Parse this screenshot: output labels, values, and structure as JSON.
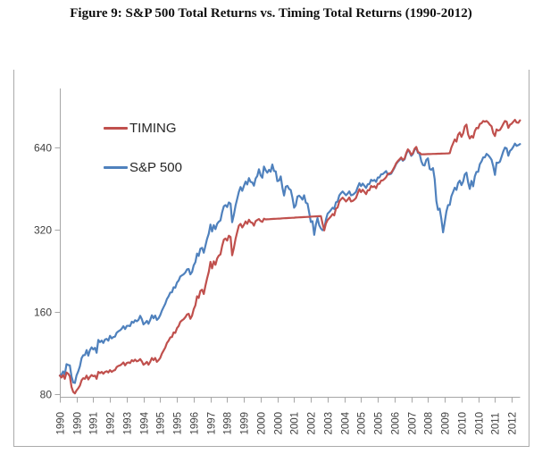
{
  "title": "Figure 9: S&P 500 Total Returns vs. Timing Total Returns (1990-2012)",
  "colors": {
    "timing_red": "#C0504D",
    "sp500_blue": "#4F81BD",
    "axis_gray": "#A6A6A6",
    "tick_label_gray": "#404040",
    "title_black": "#111111"
  },
  "chart_data": {
    "type": "line",
    "title": "Figure 9: S&P 500 Total Returns vs. Timing Total Returns (1990-2012)",
    "y_scale": "log2",
    "y_ticks": [
      80,
      160,
      320,
      640
    ],
    "ylim": [
      80,
      900
    ],
    "x_start": "1990-01",
    "x_step": "1 month",
    "x_points": 276,
    "x_tick_every_months": 10,
    "x_tick_labels": [
      "1990",
      "1990",
      "1991",
      "1992",
      "1993",
      "1994",
      "1995",
      "1995",
      "1996",
      "1997",
      "1998",
      "1999",
      "2000",
      "2000",
      "2001",
      "2002",
      "2003",
      "2004",
      "2005",
      "2005",
      "2006",
      "2007",
      "2008",
      "2009",
      "2010",
      "2010",
      "2011",
      "2012"
    ],
    "grid": false,
    "legend_position": "upper-left-inside",
    "series": [
      {
        "name": "TIMING",
        "color": "#C0504D",
        "values": [
          93.5,
          92,
          94,
          91,
          96,
          95,
          93,
          85,
          81.5,
          80.5,
          82.5,
          84,
          86,
          90,
          91.5,
          91,
          93.5,
          90.5,
          92.5,
          94,
          93,
          93.5,
          91,
          96.5,
          95.5,
          96.5,
          95,
          96.5,
          97,
          96,
          98,
          96.5,
          97.5,
          98,
          100.5,
          101.5,
          102,
          103,
          104.5,
          102,
          104,
          104.5,
          104,
          106.5,
          105.5,
          107,
          105.5,
          106,
          107.5,
          105.5,
          102.5,
          103.5,
          105,
          102.5,
          105,
          108.5,
          106.5,
          108.5,
          105,
          106.5,
          108.5,
          112.5,
          115.5,
          118.5,
          123,
          125.5,
          129,
          129.5,
          134.5,
          134,
          139.5,
          142,
          147,
          149,
          150.5,
          153,
          156.5,
          157.5,
          151,
          155,
          163.5,
          169,
          182.5,
          180,
          191,
          193,
          186,
          199,
          212,
          224,
          244,
          231,
          245,
          238,
          251,
          257,
          260,
          279,
          294,
          297,
          292,
          304,
          301,
          258,
          274,
          296,
          314,
          331,
          336,
          326,
          333,
          343,
          336,
          348,
          341,
          339,
          331,
          344,
          347,
          350,
          344,
          342,
          351,
          349,
          349.3,
          349.6,
          349.9,
          350.2,
          350.5,
          350.8,
          351.1,
          351.4,
          351.7,
          352,
          352.3,
          352.6,
          352.9,
          353.2,
          353.5,
          353.8,
          354.1,
          354.4,
          354.7,
          355,
          355.3,
          355.6,
          355.9,
          356.2,
          356.5,
          356.8,
          357.1,
          357.4,
          357.7,
          358,
          358.3,
          358.6,
          358.9,
          337,
          318,
          337,
          347,
          352,
          358,
          365,
          361,
          382,
          386,
          406,
          413,
          419,
          413,
          406,
          412,
          420,
          406,
          408,
          412,
          418,
          435,
          450,
          439,
          448,
          440,
          432,
          446,
          446,
          463,
          458,
          462,
          454,
          471,
          471,
          484,
          485,
          491,
          498,
          512,
          514,
          517,
          529,
          543,
          560,
          571,
          579,
          588,
          576,
          583,
          609,
          630,
          620,
          601,
          610,
          633,
          643,
          616,
          612,
          604,
          604.3,
          604.6,
          604.9,
          605.2,
          605.5,
          605.8,
          606.1,
          606.4,
          606.7,
          607,
          607.3,
          607.6,
          607.9,
          608.2,
          608.5,
          608.8,
          610,
          640,
          662,
          685,
          672,
          712,
          726,
          700,
          721,
          764,
          776,
          714,
          690,
          705,
          695,
          735,
          755,
          752,
          780,
          785,
          800,
          795,
          800,
          790,
          775,
          765,
          722,
          705,
          745,
          738,
          742,
          760,
          780,
          800,
          795,
          755,
          775,
          782,
          795,
          808,
          790,
          788,
          805
        ]
      },
      {
        "name": "S&P 500",
        "color": "#4F81BD",
        "values": [
          93.5,
          94.5,
          96.9,
          94.6,
          103,
          102.3,
          102,
          92.8,
          88.3,
          87.9,
          93.6,
          96.9,
          101.2,
          108.4,
          111,
          111.2,
          116,
          110.7,
          115.9,
          118.6,
          116.6,
          118.2,
          113.4,
          126.3,
          124,
          125.6,
          123.2,
          126.8,
          127.4,
          125.5,
          130.7,
          128,
          129.5,
          129.9,
          134.3,
          135.9,
          137,
          138.9,
          141.8,
          138.4,
          142.1,
          142.5,
          141.9,
          147.3,
          146.1,
          149.2,
          147.8,
          149.6,
          154.8,
          150.6,
          144,
          145.9,
          148.3,
          144.7,
          149.4,
          155.5,
          151.7,
          155.1,
          149.5,
          151.7,
          155.6,
          161.7,
          166.5,
          171.4,
          178.2,
          182.4,
          188.4,
          188.9,
          196.9,
          196.2,
          204.8,
          208.6,
          215.7,
          217.7,
          219.8,
          223,
          228.8,
          229.7,
          219.5,
          224.1,
          236.7,
          243.3,
          261.7,
          256.5,
          272.5,
          274.7,
          263.4,
          279.1,
          296.1,
          309.4,
          334,
          315.3,
          332.6,
          321.5,
          336.4,
          342.2,
          346,
          370.9,
          389.9,
          393.8,
          387.1,
          402.8,
          398.5,
          340.9,
          362.7,
          392.2,
          416,
          440,
          458.4,
          444.1,
          461.9,
          479.8,
          468.4,
          494.4,
          479,
          476.6,
          463.5,
          492.9,
          502.9,
          532.5,
          505.8,
          496.2,
          544.7,
          528.3,
          517.5,
          530.2,
          521.9,
          554.3,
          525.1,
          522.9,
          481.7,
          484.1,
          501.2,
          455.5,
          426.7,
          459.8,
          462.9,
          451.6,
          447.2,
          419.2,
          385.3,
          392.7,
          422.8,
          426.5,
          420.3,
          412.2,
          427.7,
          401.8,
          398.8,
          370.4,
          341.5,
          343.7,
          306.3,
          333.3,
          352.9,
          332.2,
          323.5,
          318.6,
          321.7,
          348.2,
          366.6,
          371.2,
          377.8,
          385.1,
          381,
          402.6,
          406.1,
          427.4,
          435.2,
          441.3,
          434.6,
          427.8,
          433.6,
          442.1,
          427.4,
          429.2,
          433.8,
          440.4,
          458.2,
          473.8,
          462.2,
          471.9,
          463.6,
          454.8,
          469.2,
          469.9,
          487.3,
          482.9,
          486.8,
          478.7,
          496.8,
          496.9,
          510.1,
          511.4,
          517.8,
          524.7,
          509.6,
          510.3,
          513.4,
          525.6,
          539.2,
          556.7,
          567.3,
          575.3,
          584,
          572.6,
          579,
          604.6,
          625.7,
          615.3,
          596.2,
          605.1,
          627.8,
          637.7,
          611.1,
          606.9,
          570.5,
          551.9,
          549.6,
          576.3,
          583.8,
          534.6,
          530.1,
          537.8,
          489.9,
          407.6,
          378.3,
          382.3,
          350.1,
          312.8,
          340.2,
          372.7,
          393.6,
          394.4,
          424.2,
          439.5,
          455.9,
          447.4,
          474.3,
          483.4,
          466,
          480.4,
          509.4,
          517.4,
          476.1,
          451.2,
          482.8,
          461,
          502.1,
          521.2,
          521.2,
          556,
          569.2,
          588.7,
          588.9,
          606.3,
          599.4,
          589.4,
          577.4,
          546.1,
          507.7,
          563.2,
          561.9,
          567.7,
          593.1,
          618.7,
          639.1,
          635,
          596.9,
          621.5,
          630.1,
          644.3,
          661,
          648.8,
          652.6,
          658.6
        ]
      }
    ]
  }
}
